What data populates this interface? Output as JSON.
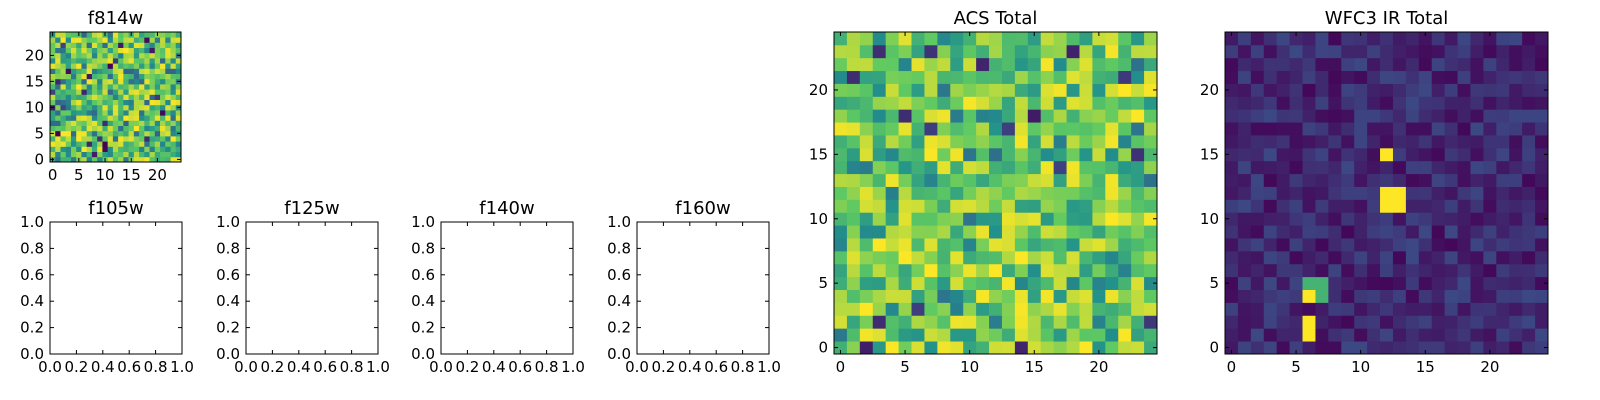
{
  "colormap": [
    "#440154",
    "#3b528b",
    "#21918c",
    "#5ec962",
    "#fde725"
  ],
  "chart_data": [
    {
      "id": "f814w",
      "type": "heatmap",
      "title": "f814w",
      "grid_size": 25,
      "xlim": [
        -0.5,
        24.5
      ],
      "ylim": [
        -0.5,
        24.5
      ],
      "xticks": [
        0,
        5,
        10,
        15,
        20
      ],
      "yticks": [
        0,
        5,
        10,
        15,
        20
      ],
      "xtick_labels": [
        "0",
        "5",
        "10",
        "15",
        "20"
      ],
      "ytick_labels": [
        "0",
        "5",
        "10",
        "15",
        "20"
      ],
      "color_scale": "viridis",
      "values_description": "uniform noise"
    },
    {
      "id": "f105w",
      "type": "heatmap",
      "title": "f105w",
      "empty": true,
      "xlim": [
        0,
        1
      ],
      "ylim": [
        0,
        1
      ],
      "xticks": [
        0,
        0.2,
        0.4,
        0.6,
        0.8,
        1.0
      ],
      "yticks": [
        0,
        0.2,
        0.4,
        0.6,
        0.8,
        1.0
      ],
      "xtick_labels": [
        "0.0",
        "0.2",
        "0.4",
        "0.6",
        "0.8",
        "1.0"
      ],
      "ytick_labels": [
        "0.0",
        "0.2",
        "0.4",
        "0.6",
        "0.8",
        "1.0"
      ]
    },
    {
      "id": "f125w",
      "type": "heatmap",
      "title": "f125w",
      "empty": true,
      "xlim": [
        0,
        1
      ],
      "ylim": [
        0,
        1
      ],
      "xticks": [
        0,
        0.2,
        0.4,
        0.6,
        0.8,
        1.0
      ],
      "yticks": [
        0,
        0.2,
        0.4,
        0.6,
        0.8,
        1.0
      ],
      "xtick_labels": [
        "0.0",
        "0.2",
        "0.4",
        "0.6",
        "0.8",
        "1.0"
      ],
      "ytick_labels": [
        "0.0",
        "0.2",
        "0.4",
        "0.6",
        "0.8",
        "1.0"
      ]
    },
    {
      "id": "f140w",
      "type": "heatmap",
      "title": "f140w",
      "empty": true,
      "xlim": [
        0,
        1
      ],
      "ylim": [
        0,
        1
      ],
      "xticks": [
        0,
        0.2,
        0.4,
        0.6,
        0.8,
        1.0
      ],
      "yticks": [
        0,
        0.2,
        0.4,
        0.6,
        0.8,
        1.0
      ],
      "xtick_labels": [
        "0.0",
        "0.2",
        "0.4",
        "0.6",
        "0.8",
        "1.0"
      ],
      "ytick_labels": [
        "0.0",
        "0.2",
        "0.4",
        "0.6",
        "0.8",
        "1.0"
      ]
    },
    {
      "id": "f160w",
      "type": "heatmap",
      "title": "f160w",
      "empty": true,
      "xlim": [
        0,
        1
      ],
      "ylim": [
        0,
        1
      ],
      "xticks": [
        0,
        0.2,
        0.4,
        0.6,
        0.8,
        1.0
      ],
      "yticks": [
        0,
        0.2,
        0.4,
        0.6,
        0.8,
        1.0
      ],
      "xtick_labels": [
        "0.0",
        "0.2",
        "0.4",
        "0.6",
        "0.8",
        "1.0"
      ],
      "ytick_labels": [
        "0.0",
        "0.2",
        "0.4",
        "0.6",
        "0.8",
        "1.0"
      ]
    },
    {
      "id": "acs_total",
      "type": "heatmap",
      "title": "ACS Total",
      "grid_size": 25,
      "xlim": [
        -0.5,
        24.5
      ],
      "ylim": [
        -0.5,
        24.5
      ],
      "xticks": [
        0,
        5,
        10,
        15,
        20
      ],
      "yticks": [
        0,
        5,
        10,
        15,
        20
      ],
      "xtick_labels": [
        "0",
        "5",
        "10",
        "15",
        "20"
      ],
      "ytick_labels": [
        "0",
        "5",
        "10",
        "15",
        "20"
      ],
      "color_scale": "viridis",
      "values_description": "uniform noise, mostly high values"
    },
    {
      "id": "wfc3_ir_total",
      "type": "heatmap",
      "title": "WFC3 IR Total",
      "grid_size": 25,
      "xlim": [
        -0.5,
        24.5
      ],
      "ylim": [
        -0.5,
        24.5
      ],
      "xticks": [
        0,
        5,
        10,
        15,
        20
      ],
      "yticks": [
        0,
        5,
        10,
        15,
        20
      ],
      "xtick_labels": [
        "0",
        "5",
        "10",
        "15",
        "20"
      ],
      "ytick_labels": [
        "0",
        "5",
        "10",
        "15",
        "20"
      ],
      "color_scale": "viridis",
      "values_description": "low background with a few bright sources",
      "bright_cells": [
        {
          "x": 12,
          "y": 15,
          "value": 1.0
        },
        {
          "x": 12,
          "y": 11,
          "value": 1.0
        },
        {
          "x": 13,
          "y": 11,
          "value": 1.0
        },
        {
          "x": 12,
          "y": 12,
          "value": 1.0
        },
        {
          "x": 13,
          "y": 12,
          "value": 1.0
        },
        {
          "x": 6,
          "y": 4,
          "value": 1.0
        },
        {
          "x": 6,
          "y": 5,
          "value": 0.65
        },
        {
          "x": 7,
          "y": 5,
          "value": 0.65
        },
        {
          "x": 7,
          "y": 4,
          "value": 0.65
        },
        {
          "x": 6,
          "y": 1,
          "value": 1.0
        },
        {
          "x": 6,
          "y": 2,
          "value": 1.0
        }
      ]
    }
  ]
}
